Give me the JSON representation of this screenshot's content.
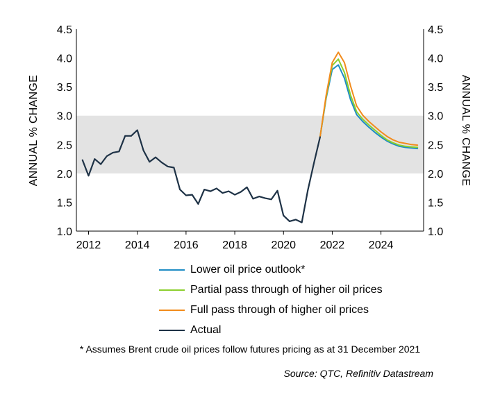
{
  "chart_data": {
    "type": "line",
    "ylabel_left": "ANNUAL % CHANGE",
    "ylabel_right": "ANNUAL % CHANGE",
    "ylim": [
      1.0,
      4.5
    ],
    "y_ticks": [
      "1.0",
      "1.5",
      "2.0",
      "2.5",
      "3.0",
      "3.5",
      "4.0",
      "4.5"
    ],
    "xlim": [
      2011.5,
      2025.75
    ],
    "x_ticks": [
      "2012",
      "2014",
      "2016",
      "2018",
      "2020",
      "2022",
      "2024"
    ],
    "target_band": [
      2.0,
      3.0
    ],
    "grid": false,
    "legend_position": "bottom-center",
    "series": [
      {
        "name": "Lower oil price outlook*",
        "color": "#1f8dc4",
        "x": [
          2021.5,
          2021.75,
          2022.0,
          2022.25,
          2022.5,
          2022.75,
          2023.0,
          2023.25,
          2023.5,
          2023.75,
          2024.0,
          2024.25,
          2024.5,
          2024.75,
          2025.0,
          2025.25,
          2025.5
        ],
        "y": [
          2.63,
          3.3,
          3.8,
          3.88,
          3.65,
          3.28,
          3.02,
          2.9,
          2.8,
          2.71,
          2.63,
          2.56,
          2.51,
          2.47,
          2.45,
          2.44,
          2.43
        ]
      },
      {
        "name": "Partial pass through of higher oil prices",
        "color": "#8ccf2e",
        "x": [
          2021.5,
          2021.75,
          2022.0,
          2022.25,
          2022.5,
          2022.75,
          2023.0,
          2023.25,
          2023.5,
          2023.75,
          2024.0,
          2024.25,
          2024.5,
          2024.75,
          2025.0,
          2025.25,
          2025.5
        ],
        "y": [
          2.63,
          3.32,
          3.87,
          3.98,
          3.75,
          3.36,
          3.07,
          2.94,
          2.84,
          2.75,
          2.66,
          2.58,
          2.53,
          2.49,
          2.47,
          2.46,
          2.45
        ]
      },
      {
        "name": "Full pass through of higher oil prices",
        "color": "#f28b1c",
        "x": [
          2021.5,
          2021.75,
          2022.0,
          2022.25,
          2022.5,
          2022.75,
          2023.0,
          2023.25,
          2023.5,
          2023.75,
          2024.0,
          2024.25,
          2024.5,
          2024.75,
          2025.0,
          2025.25,
          2025.5
        ],
        "y": [
          2.63,
          3.35,
          3.92,
          4.1,
          3.92,
          3.52,
          3.17,
          3.01,
          2.9,
          2.81,
          2.72,
          2.64,
          2.58,
          2.54,
          2.52,
          2.5,
          2.49
        ]
      },
      {
        "name": "Actual",
        "color": "#1e3246",
        "x": [
          2011.75,
          2012.0,
          2012.25,
          2012.5,
          2012.75,
          2013.0,
          2013.25,
          2013.5,
          2013.75,
          2014.0,
          2014.25,
          2014.5,
          2014.75,
          2015.0,
          2015.25,
          2015.5,
          2015.75,
          2016.0,
          2016.25,
          2016.5,
          2016.75,
          2017.0,
          2017.25,
          2017.5,
          2017.75,
          2018.0,
          2018.25,
          2018.5,
          2018.75,
          2019.0,
          2019.25,
          2019.5,
          2019.75,
          2020.0,
          2020.25,
          2020.5,
          2020.75,
          2021.0,
          2021.25,
          2021.5
        ],
        "y": [
          2.23,
          1.96,
          2.25,
          2.16,
          2.3,
          2.36,
          2.38,
          2.65,
          2.65,
          2.75,
          2.4,
          2.2,
          2.28,
          2.19,
          2.12,
          2.1,
          1.72,
          1.62,
          1.63,
          1.47,
          1.72,
          1.69,
          1.74,
          1.66,
          1.69,
          1.63,
          1.68,
          1.76,
          1.56,
          1.6,
          1.57,
          1.55,
          1.7,
          1.27,
          1.17,
          1.2,
          1.15,
          1.71,
          2.18,
          2.63
        ]
      }
    ]
  },
  "legend_order": [
    0,
    1,
    2,
    3
  ],
  "footnote": "* Assumes Brent crude oil prices follow futures pricing as at 31 December 2021",
  "source": "Source: QTC, Refinitiv Datastream"
}
